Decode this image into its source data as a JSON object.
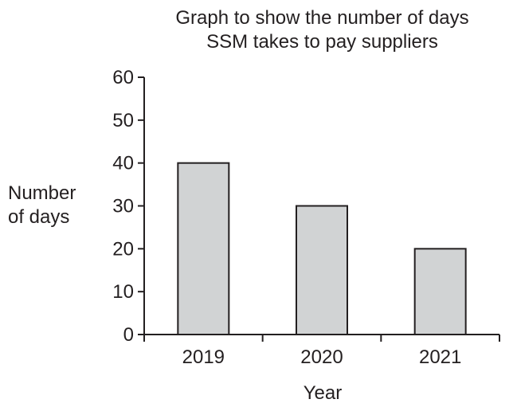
{
  "chart_data": {
    "type": "bar",
    "title_lines": [
      "Graph to show the number of days",
      "SSM takes to pay suppliers"
    ],
    "ylabel_lines": [
      "Number",
      "of days"
    ],
    "xlabel": "Year",
    "categories": [
      "2019",
      "2020",
      "2021"
    ],
    "values": [
      40,
      30,
      20
    ],
    "ylim": [
      0,
      60
    ],
    "yticks": [
      0,
      10,
      20,
      30,
      40,
      50,
      60
    ],
    "grid": false,
    "bar_color": "#d1d3d4",
    "bar_stroke": "#231f20"
  }
}
